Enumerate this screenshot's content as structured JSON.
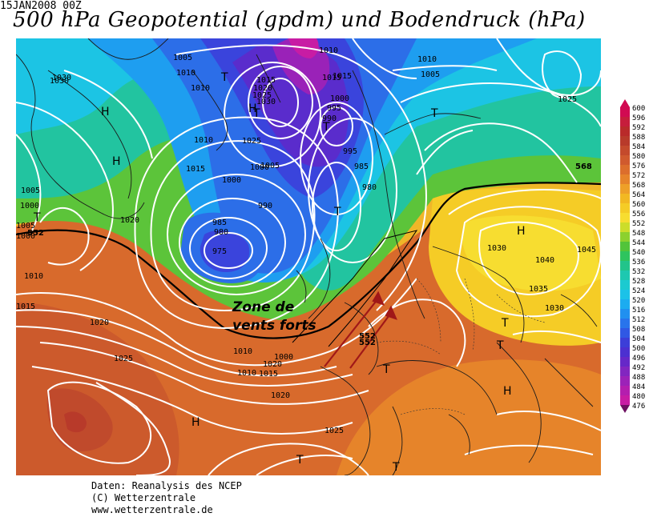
{
  "header": {
    "date": "15JAN2008 00Z",
    "title": "500 hPa Geopotential (gpdm) und Bodendruck (hPa)"
  },
  "legend": {
    "levels": [
      "600",
      "596",
      "592",
      "588",
      "584",
      "580",
      "576",
      "572",
      "568",
      "564",
      "560",
      "556",
      "552",
      "548",
      "544",
      "540",
      "536",
      "532",
      "528",
      "524",
      "520",
      "516",
      "512",
      "508",
      "504",
      "500",
      "496",
      "492",
      "488",
      "484",
      "480",
      "476"
    ],
    "colors": [
      "#d10a52",
      "#c61d3c",
      "#b92a2a",
      "#b83a2a",
      "#c44a2c",
      "#d05a2e",
      "#dc6e2c",
      "#e6842a",
      "#eea028",
      "#f2b822",
      "#f5cc26",
      "#f7dd30",
      "#ccdd2a",
      "#8cd12e",
      "#52c43a",
      "#2ec45e",
      "#22c48a",
      "#1ec8b0",
      "#1ccad0",
      "#1cc2e8",
      "#1cacf0",
      "#2090f0",
      "#2874ec",
      "#3058e4",
      "#3c3ed8",
      "#4c30d0",
      "#6628c8",
      "#8226c0",
      "#9c22b8",
      "#b41eae",
      "#c81ca4",
      "#6c1060"
    ]
  },
  "map": {
    "pressure_labels": [
      {
        "text": "1030"
      },
      {
        "text": "1005"
      },
      {
        "text": "1010"
      },
      {
        "text": "1010"
      },
      {
        "text": "1015"
      },
      {
        "text": "1020"
      },
      {
        "text": "1025"
      },
      {
        "text": "1030"
      },
      {
        "text": "995"
      },
      {
        "text": "1000"
      },
      {
        "text": "990"
      },
      {
        "text": "1015"
      },
      {
        "text": "1025"
      },
      {
        "text": "1000"
      },
      {
        "text": "1005"
      },
      {
        "text": "1010"
      },
      {
        "text": "1015"
      },
      {
        "text": "1000"
      },
      {
        "text": "990"
      },
      {
        "text": "985"
      },
      {
        "text": "980"
      },
      {
        "text": "975"
      },
      {
        "text": "995"
      },
      {
        "text": "985"
      },
      {
        "text": "980"
      },
      {
        "text": "1005"
      },
      {
        "text": "1010"
      },
      {
        "text": "1015"
      },
      {
        "text": "1000"
      },
      {
        "text": "1005"
      },
      {
        "text": "1010"
      },
      {
        "text": "1015"
      },
      {
        "text": "1020"
      },
      {
        "text": "1025"
      },
      {
        "text": "1025"
      },
      {
        "text": "1020"
      },
      {
        "text": "1010"
      },
      {
        "text": "1025"
      },
      {
        "text": "1030"
      },
      {
        "text": "1040"
      },
      {
        "text": "1045"
      },
      {
        "text": "1035"
      },
      {
        "text": "1030"
      },
      {
        "text": "1025"
      },
      {
        "text": "1005"
      },
      {
        "text": "1000"
      },
      {
        "text": "1030"
      },
      {
        "text": "1010"
      },
      {
        "text": "1020"
      },
      {
        "text": "1015"
      },
      {
        "text": "1010"
      },
      {
        "text": "1020"
      },
      {
        "text": "1000"
      }
    ],
    "geopot_labels": [
      "552",
      "552",
      "552",
      "568"
    ],
    "centers": [
      {
        "text": "H"
      },
      {
        "text": "H"
      },
      {
        "text": "T"
      },
      {
        "text": "T"
      },
      {
        "text": "H"
      },
      {
        "text": "T"
      },
      {
        "text": "T"
      },
      {
        "text": "T"
      },
      {
        "text": "T"
      },
      {
        "text": "H"
      },
      {
        "text": "T"
      },
      {
        "text": "T"
      },
      {
        "text": "H"
      },
      {
        "text": "H"
      },
      {
        "text": "T"
      },
      {
        "text": "T"
      },
      {
        "text": "T"
      }
    ],
    "annotation": {
      "line1": "Zone de",
      "line2": "vents forts"
    }
  },
  "credits": {
    "line1": "Daten: Reanalysis des NCEP",
    "line2": "(C) Wetterzentrale",
    "line3": "www.wetterzentrale.de"
  }
}
